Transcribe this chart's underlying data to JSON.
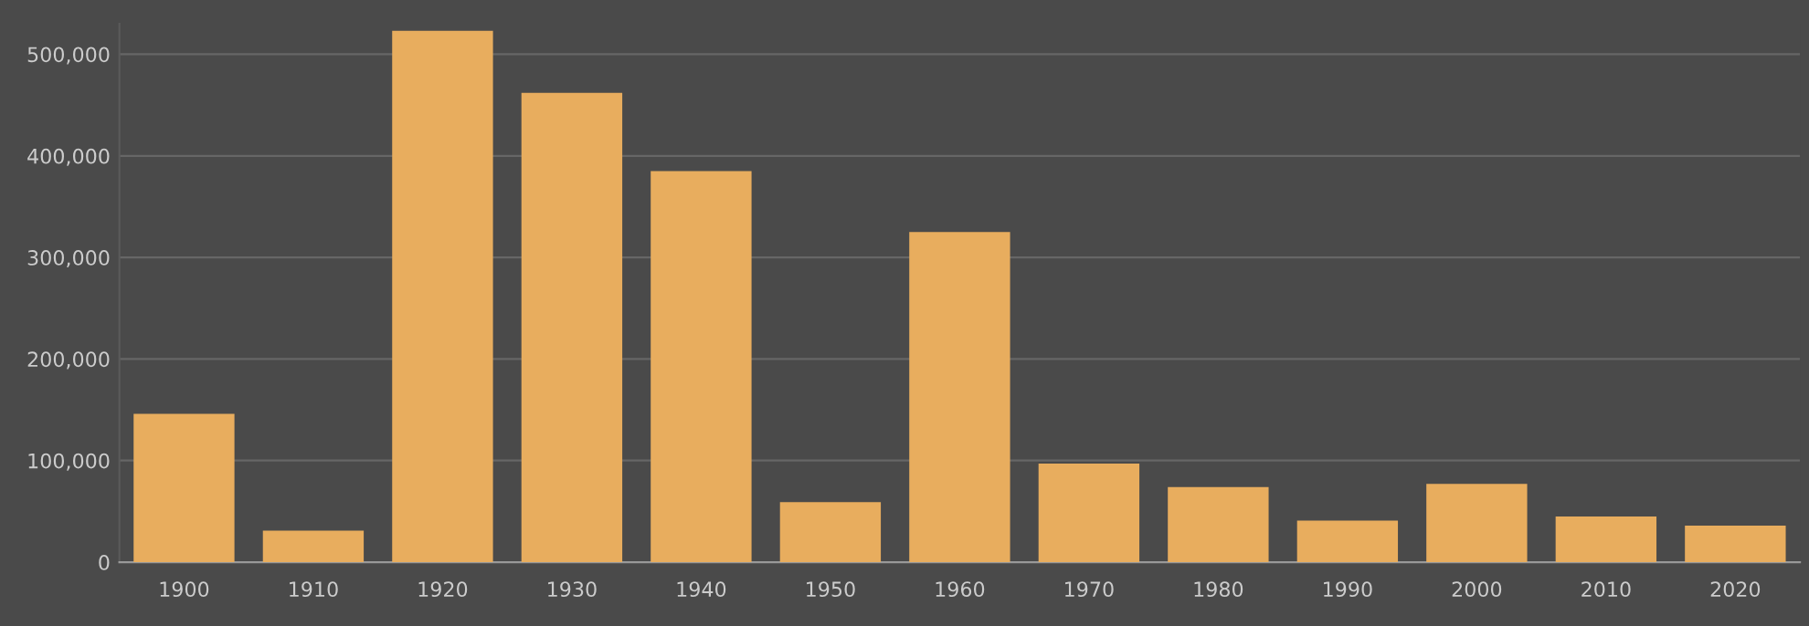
{
  "chart_data": {
    "type": "bar",
    "categories": [
      "1900",
      "1910",
      "1920",
      "1930",
      "1940",
      "1950",
      "1960",
      "1970",
      "1980",
      "1990",
      "2000",
      "2010",
      "2020"
    ],
    "values": [
      146000,
      31000,
      523000,
      462000,
      385000,
      59000,
      325000,
      97000,
      74000,
      41000,
      77000,
      45000,
      36000
    ],
    "color": "#e8ad5e",
    "ylim": [
      0,
      530000
    ],
    "yticks": [
      {
        "value": 0,
        "label": "0"
      },
      {
        "value": 100000,
        "label": "100,000"
      },
      {
        "value": 200000,
        "label": "200,000"
      },
      {
        "value": 300000,
        "label": "300,000"
      },
      {
        "value": 400000,
        "label": "400,000"
      },
      {
        "value": 500000,
        "label": "500,000"
      }
    ],
    "grid": "y"
  }
}
